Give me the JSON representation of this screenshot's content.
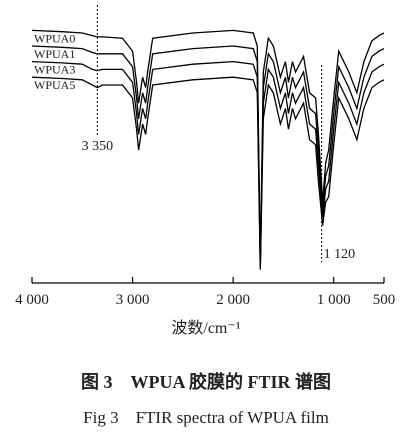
{
  "chart_data": {
    "type": "line",
    "title": "图 3　WPUA 胶膜的 FTIR 谱图",
    "subtitle": "Fig 3　FTIR spectra of WPUA film",
    "x_label": "波数/cm⁻¹",
    "x": [
      4000,
      3700,
      3500,
      3400,
      3350,
      3300,
      3100,
      3000,
      2960,
      2940,
      2900,
      2870,
      2850,
      2800,
      2400,
      2000,
      1800,
      1760,
      1730,
      1700,
      1650,
      1600,
      1530,
      1480,
      1450,
      1410,
      1380,
      1300,
      1240,
      1180,
      1150,
      1110,
      1080,
      1050,
      1000,
      950,
      850,
      770,
      700,
      620,
      550,
      500
    ],
    "series": [
      {
        "name": "WPUA0",
        "color": "#000000",
        "values": [
          96,
          95.5,
          95,
          94,
          93.5,
          93.5,
          93,
          88,
          76,
          68,
          78,
          74,
          80,
          93,
          95,
          96,
          95,
          90,
          6,
          80,
          93,
          90,
          78,
          84,
          76,
          84,
          80,
          86,
          72,
          70,
          55,
          30,
          45,
          50,
          70,
          88,
          80,
          72,
          84,
          92,
          94,
          95
        ]
      },
      {
        "name": "WPUA1",
        "color": "#000000",
        "values": [
          90,
          89.5,
          89,
          87.5,
          87,
          87,
          87,
          82,
          70,
          62,
          72,
          68,
          74,
          87,
          89,
          90,
          89,
          84,
          5,
          74,
          87,
          84,
          72,
          78,
          70,
          78,
          74,
          80,
          66,
          64,
          49,
          27,
          40,
          44,
          64,
          82,
          74,
          66,
          78,
          86,
          88,
          89
        ]
      },
      {
        "name": "WPUA3",
        "color": "#000000",
        "values": [
          84,
          83.5,
          83,
          81,
          80.5,
          81,
          81,
          76,
          64,
          56,
          66,
          62,
          68,
          81,
          83,
          84,
          83,
          78,
          4.5,
          68,
          81,
          78,
          66,
          72,
          64,
          72,
          68,
          74,
          60,
          58,
          43,
          24,
          35,
          38,
          58,
          76,
          68,
          60,
          72,
          80,
          82,
          83
        ]
      },
      {
        "name": "WPUA5",
        "color": "#000000",
        "values": [
          78,
          77.5,
          77,
          75,
          74,
          75,
          75,
          70,
          58,
          50,
          60,
          56,
          62,
          75,
          77,
          78,
          77,
          72,
          4,
          62,
          75,
          72,
          60,
          66,
          58,
          66,
          62,
          68,
          54,
          52,
          37,
          21,
          30,
          32,
          52,
          70,
          62,
          54,
          66,
          74,
          76,
          77
        ]
      }
    ],
    "xlim": [
      4000,
      500
    ],
    "xticks": [
      {
        "value": 4000,
        "label": "4 000"
      },
      {
        "value": 3000,
        "label": "3 000"
      },
      {
        "value": 2000,
        "label": "2 000"
      },
      {
        "value": 1000,
        "label": "1 000"
      },
      500
    ],
    "ylim": [
      0,
      100
    ],
    "annotations": [
      {
        "text": "3 350",
        "x": 3350
      },
      {
        "text": "1 120",
        "x": 1120
      }
    ]
  }
}
